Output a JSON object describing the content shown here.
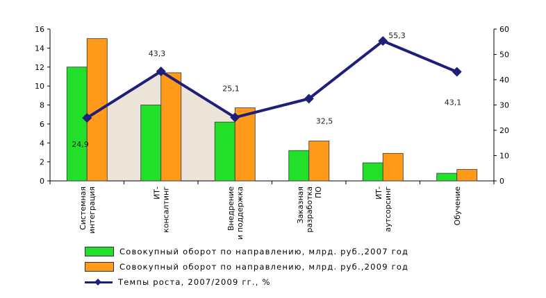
{
  "colors": {
    "series2007": "#22e02a",
    "series2009": "#ff9a1a",
    "growth": "#1f1f7a",
    "highlight": "#ece4d8"
  },
  "chart_data": {
    "type": "bar",
    "categories": [
      [
        "Системная",
        "интеграция"
      ],
      [
        "ИТ-",
        "консалтинг"
      ],
      [
        "Внедрение",
        "и поддержка"
      ],
      [
        "Заказная",
        "разработка",
        "ПО"
      ],
      [
        "ИТ-",
        "аутсорсинг"
      ],
      [
        "Обучение"
      ]
    ],
    "series": [
      {
        "name": "Совокупный оборот по направлению, млрд. руб.,2007 год",
        "axis": "left",
        "values": [
          12,
          8,
          6.2,
          3.2,
          1.9,
          0.8
        ]
      },
      {
        "name": "Совокупный оборот по направлению, млрд. руб.,2009 год",
        "axis": "left",
        "values": [
          15,
          11.4,
          7.7,
          4.2,
          2.9,
          1.2
        ]
      },
      {
        "name": "Темпы роста, 2007/2009 гг., %",
        "type": "line",
        "axis": "right",
        "values": [
          24.9,
          43.3,
          25.1,
          32.5,
          55.3,
          43.1
        ]
      }
    ],
    "data_labels": [
      "24,9",
      "43,3",
      "25,1",
      "32,5",
      "55,3",
      "43,1"
    ],
    "ylim_left": [
      0,
      16
    ],
    "yticks_left": [
      0,
      2,
      4,
      6,
      8,
      10,
      12,
      14,
      16
    ],
    "ylim_right": [
      0,
      60
    ],
    "yticks_right": [
      0,
      10,
      20,
      30,
      40,
      50,
      60
    ],
    "legend_position": "bottom"
  },
  "legend": {
    "item_2007": "Совокупный оборот по направлению, млрд. руб.,2007    год",
    "item_2009": "Совокупный оборот по направлению, млрд. руб.,2009    год",
    "item_growth": "Темпы роста, 2007/2009    гг., %"
  }
}
